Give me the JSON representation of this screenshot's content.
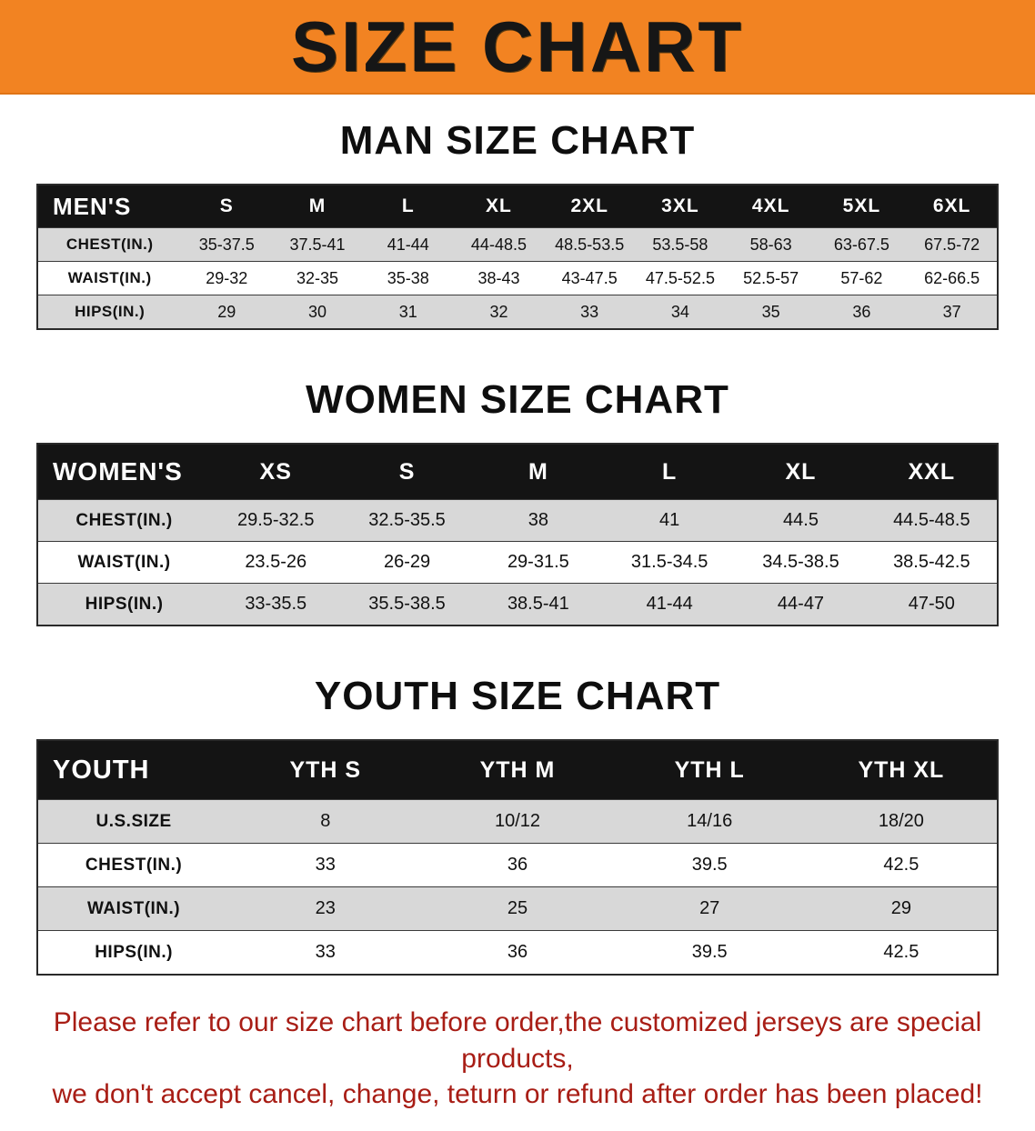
{
  "banner": {
    "title": "SIZE CHART"
  },
  "colors": {
    "banner_bg": "#F28322",
    "header_bg": "#141414",
    "row_shade": "#D8D8D8",
    "footer_text": "#A81D15"
  },
  "sections": [
    {
      "title": "MAN SIZE CHART",
      "header_label": "MEN'S",
      "columns": [
        "S",
        "M",
        "L",
        "XL",
        "2XL",
        "3XL",
        "4XL",
        "5XL",
        "6XL"
      ],
      "rows": [
        {
          "label": "CHEST(IN.)",
          "values": [
            "35-37.5",
            "37.5-41",
            "41-44",
            "44-48.5",
            "48.5-53.5",
            "53.5-58",
            "58-63",
            "63-67.5",
            "67.5-72"
          ]
        },
        {
          "label": "WAIST(IN.)",
          "values": [
            "29-32",
            "32-35",
            "35-38",
            "38-43",
            "43-47.5",
            "47.5-52.5",
            "52.5-57",
            "57-62",
            "62-66.5"
          ]
        },
        {
          "label": "HIPS(IN.)",
          "values": [
            "29",
            "30",
            "31",
            "32",
            "33",
            "34",
            "35",
            "36",
            "37"
          ]
        }
      ]
    },
    {
      "title": "WOMEN SIZE CHART",
      "header_label": "WOMEN'S",
      "columns": [
        "XS",
        "S",
        "M",
        "L",
        "XL",
        "XXL"
      ],
      "rows": [
        {
          "label": "CHEST(IN.)",
          "values": [
            "29.5-32.5",
            "32.5-35.5",
            "38",
            "41",
            "44.5",
            "44.5-48.5"
          ]
        },
        {
          "label": "WAIST(IN.)",
          "values": [
            "23.5-26",
            "26-29",
            "29-31.5",
            "31.5-34.5",
            "34.5-38.5",
            "38.5-42.5"
          ]
        },
        {
          "label": "HIPS(IN.)",
          "values": [
            "33-35.5",
            "35.5-38.5",
            "38.5-41",
            "41-44",
            "44-47",
            "47-50"
          ]
        }
      ]
    },
    {
      "title": "YOUTH SIZE CHART",
      "header_label": "YOUTH",
      "columns": [
        "YTH S",
        "YTH M",
        "YTH L",
        "YTH XL"
      ],
      "rows": [
        {
          "label": "U.S.SIZE",
          "values": [
            "8",
            "10/12",
            "14/16",
            "18/20"
          ]
        },
        {
          "label": "CHEST(IN.)",
          "values": [
            "33",
            "36",
            "39.5",
            "42.5"
          ]
        },
        {
          "label": "WAIST(IN.)",
          "values": [
            "23",
            "25",
            "27",
            "29"
          ]
        },
        {
          "label": "HIPS(IN.)",
          "values": [
            "33",
            "36",
            "39.5",
            "42.5"
          ]
        }
      ]
    }
  ],
  "footer": {
    "line1": "Please refer to our size chart before order,the customized jerseys are special products,",
    "line2": "we don't accept cancel, change, teturn or refund after order has been placed!"
  }
}
